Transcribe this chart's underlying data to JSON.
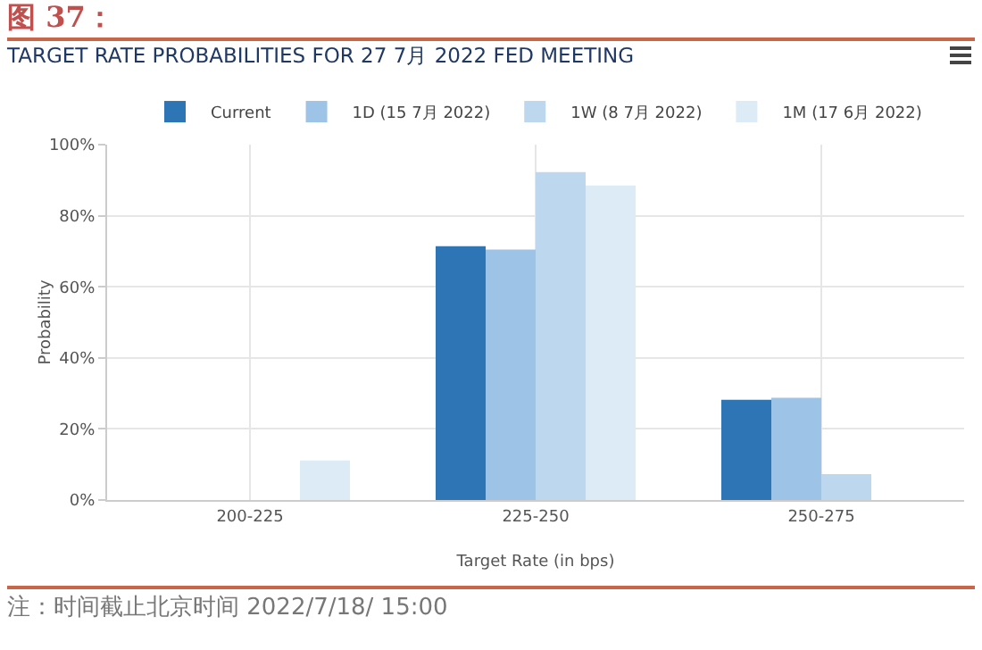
{
  "chart_data": {
    "type": "bar",
    "title": "图 37：",
    "subtitle": "TARGET RATE PROBABILITIES FOR 27 7月 2022 FED MEETING",
    "xlabel": "Target Rate (in bps)",
    "ylabel": "Probability",
    "categories": [
      "200-225",
      "225-250",
      "250-275"
    ],
    "series": [
      {
        "name": "Current",
        "color": "#2e75b6",
        "values": [
          0,
          71.4,
          28.2
        ]
      },
      {
        "name": "1D (15 7月 2022)",
        "color": "#9dc3e6",
        "values": [
          0,
          70.5,
          28.8
        ]
      },
      {
        "name": "1W (8 7月 2022)",
        "color": "#bdd7ee",
        "values": [
          0,
          92.3,
          7.3
        ]
      },
      {
        "name": "1M (17 6月 2022)",
        "color": "#ddebf7",
        "values": [
          11.1,
          88.5,
          0
        ]
      }
    ],
    "ylim": [
      0,
      100
    ],
    "yticks": [
      {
        "value": 0,
        "label": "0%"
      },
      {
        "value": 20,
        "label": "20%"
      },
      {
        "value": 40,
        "label": "40%"
      },
      {
        "value": 60,
        "label": "60%"
      },
      {
        "value": 80,
        "label": "80%"
      },
      {
        "value": 100,
        "label": "100%"
      }
    ],
    "grid": true,
    "legend": "top",
    "annotations": [
      "注：时间截止北京时间 2022/7/18/ 15:00"
    ]
  }
}
